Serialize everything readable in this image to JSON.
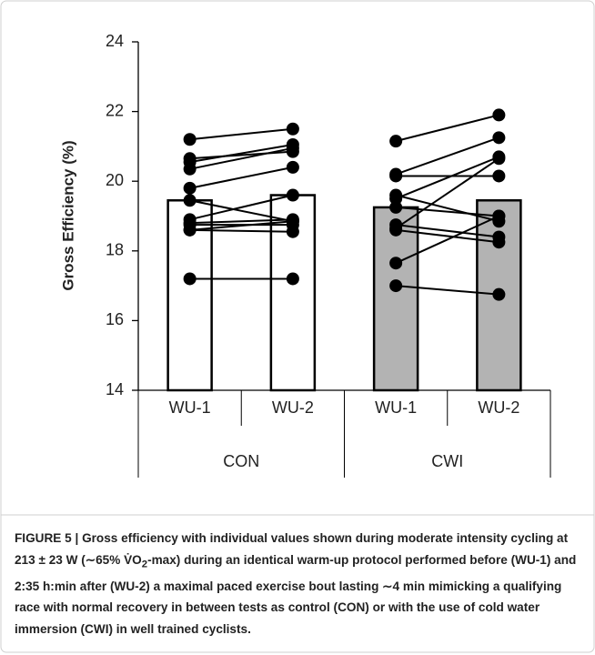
{
  "chart_data": {
    "type": "bar",
    "ylabel": "Gross Efficiency (%)",
    "ylim": [
      14,
      24
    ],
    "yticks": [
      14,
      16,
      18,
      20,
      22,
      24
    ],
    "groups": [
      {
        "name": "CON",
        "color": "#ffffff",
        "categories": [
          "WU-1",
          "WU-2"
        ],
        "values": [
          19.45,
          19.6
        ],
        "subjects": [
          [
            21.2,
            21.5
          ],
          [
            20.65,
            20.85
          ],
          [
            20.55,
            21.05
          ],
          [
            20.35,
            20.95
          ],
          [
            19.8,
            20.4
          ],
          [
            19.45,
            18.85
          ],
          [
            18.9,
            19.6
          ],
          [
            18.8,
            18.9
          ],
          [
            18.75,
            18.75
          ],
          [
            18.6,
            18.55
          ],
          [
            18.6,
            18.85
          ],
          [
            17.2,
            17.2
          ]
        ]
      },
      {
        "name": "CWI",
        "color": "#b3b3b3",
        "categories": [
          "WU-1",
          "WU-2"
        ],
        "values": [
          19.25,
          19.45
        ],
        "subjects": [
          [
            21.15,
            21.9
          ],
          [
            20.2,
            21.25
          ],
          [
            20.15,
            20.15
          ],
          [
            19.6,
            18.85
          ],
          [
            19.5,
            20.7
          ],
          [
            19.25,
            19.0
          ],
          [
            18.75,
            18.4
          ],
          [
            18.65,
            20.65
          ],
          [
            18.6,
            18.25
          ],
          [
            17.65,
            19.0
          ],
          [
            17.0,
            16.75
          ]
        ]
      }
    ],
    "caption": {
      "label": "FIGURE 5 |",
      "before": "Gross efficiency with individual values shown during moderate intensity cycling at 213 ± 23 W (∼65% V̇O",
      "sub": "2",
      "after": "-max) during an identical warm-up protocol performed before (WU-1) and 2:35 h:min after (WU-2) a maximal paced exercise bout lasting ∼4 min mimicking a qualifying race with normal recovery in between tests as control (CON) or with the use of cold water immersion (CWI) in well trained cyclists."
    }
  }
}
